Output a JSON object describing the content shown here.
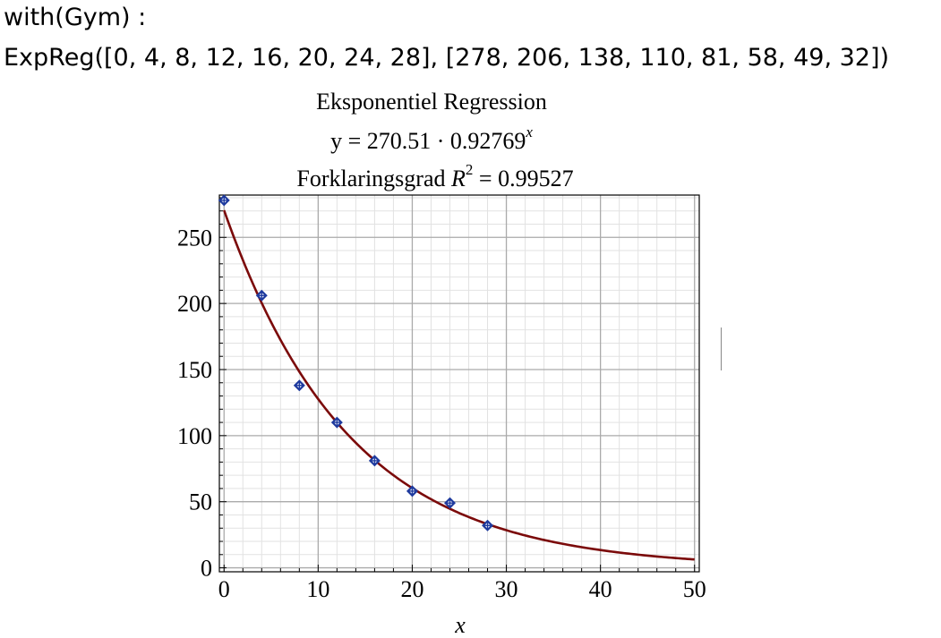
{
  "worksheet": {
    "command_1": "with(Gym) :",
    "command_2": "ExpReg([0, 4, 8, 12, 16, 20, 24, 28], [278, 206, 138, 110, 81, 58, 49, 32])"
  },
  "chart_data": {
    "type": "scatter",
    "title": "Eksponentiel Regression",
    "equation": {
      "prefix": "y = 270.51 · 0.92769",
      "exponent": "x"
    },
    "r2": {
      "prefix": "Forklaringsgrad ",
      "symbol": "R",
      "power": "2",
      "suffix": " = 0.99527"
    },
    "xlabel": "x",
    "ylabel": "",
    "xlim": [
      -0.5,
      50.5
    ],
    "ylim": [
      -3,
      282
    ],
    "xticks": [
      0,
      10,
      20,
      30,
      40,
      50
    ],
    "yticks": [
      0,
      50,
      100,
      150,
      200,
      250
    ],
    "grid": true,
    "points": {
      "x": [
        0,
        4,
        8,
        12,
        16,
        20,
        24,
        28
      ],
      "y": [
        278,
        206,
        138,
        110,
        81,
        58,
        49,
        32
      ]
    },
    "fit": {
      "a": 270.51,
      "b": 0.92769,
      "x_range": [
        0,
        50
      ]
    },
    "colors": {
      "curve": "#7b0a0a",
      "points": "#1e3a9e",
      "major_grid": "#aaaaaa",
      "minor_grid": "#e2e2e2"
    }
  }
}
